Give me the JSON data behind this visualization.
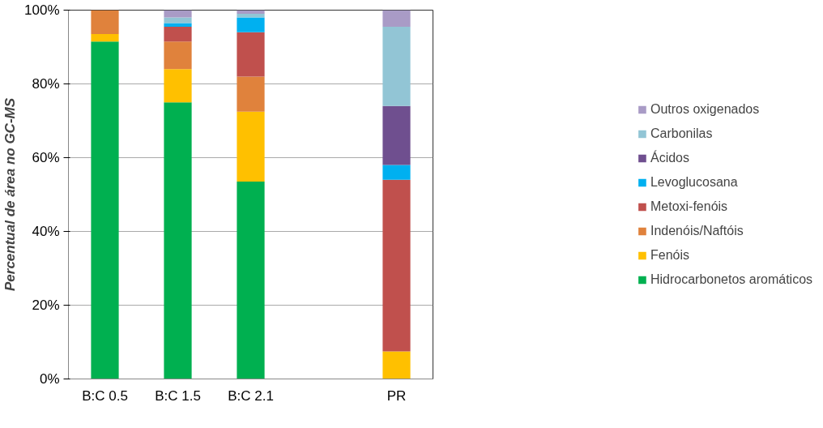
{
  "chart_data": {
    "type": "bar",
    "stacked": true,
    "ylabel": "Percentual de área no GC-MS",
    "categories": [
      "B:C 0.5",
      "B:C 1.5",
      "B:C 2.1",
      null,
      "PR"
    ],
    "series": [
      {
        "name": "Hidrocarbonetos aromáticos",
        "color": "#00b050",
        "values": [
          91.5,
          75,
          53.5,
          null,
          0
        ]
      },
      {
        "name": "Fenóis",
        "color": "#ffc000",
        "values": [
          2,
          9,
          19,
          null,
          7.5
        ]
      },
      {
        "name": "Indenóis/Naftóis",
        "color": "#e0823c",
        "values": [
          6.5,
          7.5,
          9.5,
          null,
          0
        ]
      },
      {
        "name": "Metoxi-fenóis",
        "color": "#c0504d",
        "values": [
          0,
          4,
          12,
          null,
          46.5
        ]
      },
      {
        "name": "Levoglucosana",
        "color": "#00b0f0",
        "values": [
          0,
          1,
          4,
          null,
          4
        ]
      },
      {
        "name": "Ácidos",
        "color": "#6f4f8f",
        "values": [
          0,
          0,
          0,
          null,
          16
        ]
      },
      {
        "name": "Carbonilas",
        "color": "#92c5d5",
        "values": [
          0,
          1.5,
          1,
          null,
          21.5
        ]
      },
      {
        "name": "Outros oxigenados",
        "color": "#a99bc6",
        "values": [
          0,
          2,
          1,
          null,
          4.5
        ]
      }
    ],
    "ylim": [
      0,
      100
    ],
    "yticks": [
      {
        "value": 0,
        "label": "0%"
      },
      {
        "value": 20,
        "label": "20%"
      },
      {
        "value": 40,
        "label": "40%"
      },
      {
        "value": 60,
        "label": "60%"
      },
      {
        "value": 80,
        "label": "80%"
      },
      {
        "value": 100,
        "label": "100%"
      }
    ],
    "grid": "y",
    "legend": "right"
  }
}
